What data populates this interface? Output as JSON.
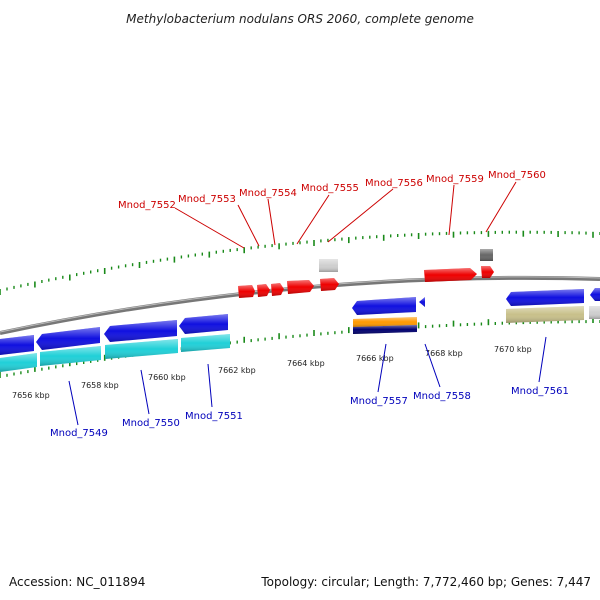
{
  "title": "Methylobacterium nodulans ORS 2060, complete genome",
  "footer": {
    "accession": "Accession: NC_011894",
    "topology": "Topology: circular; Length: 7,772,460 bp; Genes: 7,447"
  },
  "colors": {
    "forward_label": "#cc0000",
    "reverse_label": "#0000bb",
    "backbone": "#888888",
    "tick": "#1a8a1a",
    "blue": "#1010e0",
    "cyan": "#20d0d8",
    "red": "#ee0000",
    "orange": "#ff9900",
    "navy": "#000070",
    "khaki": "#c8c08a",
    "lightgray": "#cfcfcf",
    "darkgray": "#666666"
  },
  "scale_labels": [
    "7656 kbp",
    "7658 kbp",
    "7660 kbp",
    "7662 kbp",
    "7664 kbp",
    "7666 kbp",
    "7668 kbp",
    "7670 kbp"
  ],
  "forward_gene_labels": [
    "Mnod_7552",
    "Mnod_7553",
    "Mnod_7554",
    "Mnod_7555",
    "Mnod_7556",
    "Mnod_7559",
    "Mnod_7560"
  ],
  "reverse_gene_labels": [
    "Mnod_7549",
    "Mnod_7550",
    "Mnod_7551",
    "Mnod_7557",
    "Mnod_7558",
    "Mnod_7561"
  ]
}
